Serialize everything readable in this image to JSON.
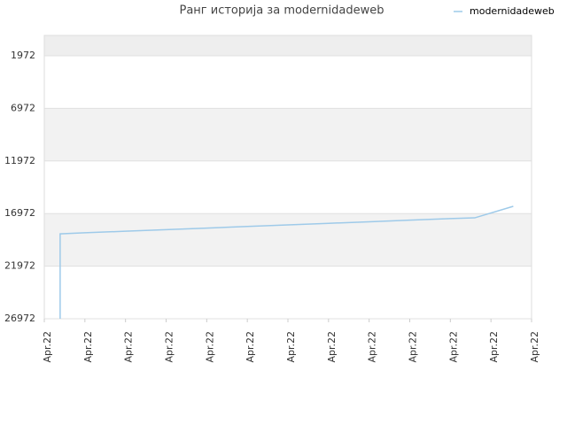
{
  "chart_data": {
    "type": "line",
    "title": "Ранг историја за modernidadeweb",
    "x": [
      0.39,
      0.39,
      1,
      2,
      3,
      4,
      5,
      6,
      7,
      8,
      9,
      10,
      10.6,
      11.55
    ],
    "series": [
      {
        "name": "modernidadeweb",
        "color": "#9ecae9",
        "values": [
          26972,
          18900,
          18800,
          18650,
          18500,
          18350,
          18200,
          18050,
          17900,
          17750,
          17600,
          17450,
          17380,
          16280
        ]
      }
    ],
    "xlim": [
      0,
      12
    ],
    "xticks": [
      {
        "value": 0,
        "label": "Apr.22"
      },
      {
        "value": 1,
        "label": "Apr.22"
      },
      {
        "value": 2,
        "label": "Apr.22"
      },
      {
        "value": 3,
        "label": "Apr.22"
      },
      {
        "value": 4,
        "label": "Apr.22"
      },
      {
        "value": 5,
        "label": "Apr.22"
      },
      {
        "value": 6,
        "label": "Apr.22"
      },
      {
        "value": 7,
        "label": "Apr.22"
      },
      {
        "value": 8,
        "label": "Apr.22"
      },
      {
        "value": 9,
        "label": "Apr.22"
      },
      {
        "value": 10,
        "label": "Apr.22"
      },
      {
        "value": 11,
        "label": "Apr.22"
      },
      {
        "value": 12,
        "label": "Apr.22"
      }
    ],
    "ylim": [
      26972,
      36
    ],
    "yticks": [
      1972,
      6972,
      11972,
      16972,
      21972,
      26972
    ],
    "grid": true,
    "legend": "top-right"
  }
}
